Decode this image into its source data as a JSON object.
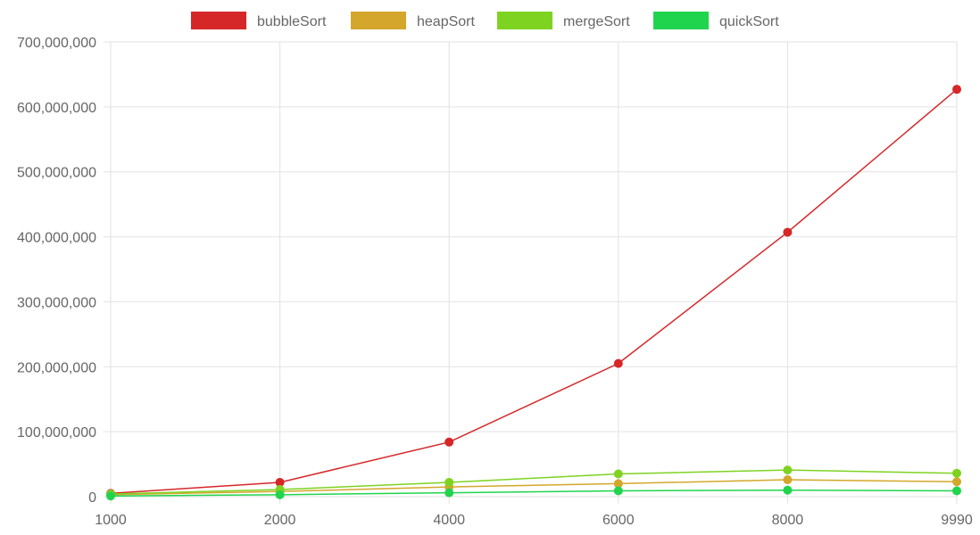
{
  "chart_data": {
    "type": "line",
    "categories": [
      "1000",
      "2000",
      "4000",
      "6000",
      "8000",
      "9990"
    ],
    "ylim": [
      0,
      700000000
    ],
    "yticks": [
      "0",
      "100,000,000",
      "200,000,000",
      "300,000,000",
      "400,000,000",
      "500,000,000",
      "600,000,000",
      "700,000,000"
    ],
    "ytick_values": [
      0,
      100000000,
      200000000,
      300000000,
      400000000,
      500000000,
      600000000,
      700000000
    ],
    "grid": true,
    "legend_position": "top-center",
    "series": [
      {
        "name": "bubbleSort",
        "color": "#d62728",
        "values": [
          5000000,
          22000000,
          84000000,
          205000000,
          407000000,
          627000000
        ]
      },
      {
        "name": "heapSort",
        "color": "#d4a72c",
        "values": [
          3000000,
          8000000,
          15000000,
          20000000,
          26000000,
          23000000
        ]
      },
      {
        "name": "mergeSort",
        "color": "#7ed321",
        "values": [
          4000000,
          11000000,
          22000000,
          35000000,
          41000000,
          36000000
        ]
      },
      {
        "name": "quickSort",
        "color": "#21d44e",
        "values": [
          1000000,
          3000000,
          6000000,
          9000000,
          10000000,
          9000000
        ]
      }
    ]
  }
}
